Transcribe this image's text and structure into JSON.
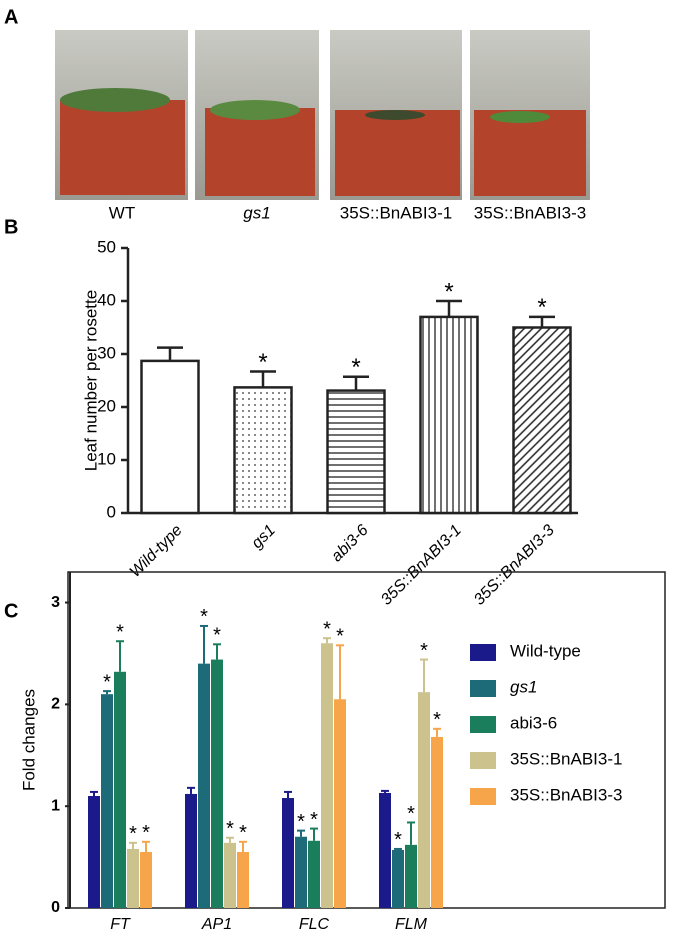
{
  "panel_labels": [
    "A",
    "B",
    "C"
  ],
  "photos": {
    "captions": [
      "WT",
      "gs1",
      "35S::BnABI3-1",
      "35S::BnABI3-3"
    ]
  },
  "chart_data": [
    {
      "type": "bar",
      "ylabel": "Leaf number per rosette",
      "categories": [
        "Wild-type",
        "gs1",
        "abi3-6",
        "35S::BnABI3-1",
        "35S::BnABI3-3"
      ],
      "values": [
        28.7,
        23.7,
        23.1,
        37,
        35
      ],
      "errors": [
        2.5,
        3,
        2.6,
        3,
        2
      ],
      "significance": [
        null,
        "*",
        "*",
        "*",
        "*"
      ],
      "patterns": [
        "none",
        "dots",
        "horizontal",
        "vertical",
        "diagonal"
      ],
      "ylim": [
        0,
        50
      ],
      "yticks": [
        0,
        10,
        20,
        30,
        40,
        50
      ]
    },
    {
      "type": "grouped_bar",
      "ylabel": "Fold changes",
      "categories": [
        "FT",
        "AP1",
        "FLC",
        "FLM"
      ],
      "series": [
        {
          "name": "Wild-type",
          "color": "#1b1a8a",
          "values": [
            1.1,
            1.12,
            1.08,
            1.13
          ],
          "errors": [
            0.04,
            0.06,
            0.06,
            0.02
          ],
          "significance": [
            null,
            null,
            null,
            null
          ]
        },
        {
          "name": "gs1",
          "color": "#1d6b78",
          "values": [
            2.1,
            2.4,
            0.7,
            0.57
          ],
          "errors": [
            0.03,
            0.37,
            0.06,
            0.01
          ],
          "significance": [
            "*",
            "*",
            "*",
            "*"
          ]
        },
        {
          "name": "abi3-6",
          "color": "#1a7d5c",
          "values": [
            2.32,
            2.44,
            0.66,
            0.62
          ],
          "errors": [
            0.3,
            0.15,
            0.12,
            0.22
          ],
          "significance": [
            "*",
            "*",
            "*",
            "*"
          ]
        },
        {
          "name": "35S::BnABI3-1",
          "color": "#cbc28e",
          "values": [
            0.58,
            0.64,
            2.6,
            2.12
          ],
          "errors": [
            0.06,
            0.05,
            0.05,
            0.32
          ],
          "significance": [
            "*",
            "*",
            "*",
            "*"
          ]
        },
        {
          "name": "35S::BnABI3-3",
          "color": "#f7a54a",
          "values": [
            0.55,
            0.55,
            2.05,
            1.68
          ],
          "errors": [
            0.1,
            0.1,
            0.53,
            0.08
          ],
          "significance": [
            "*",
            "*",
            "*",
            "*"
          ]
        }
      ],
      "ylim": [
        0,
        3.3
      ],
      "yticks": [
        0,
        1,
        2,
        3
      ],
      "legend": "right"
    }
  ]
}
